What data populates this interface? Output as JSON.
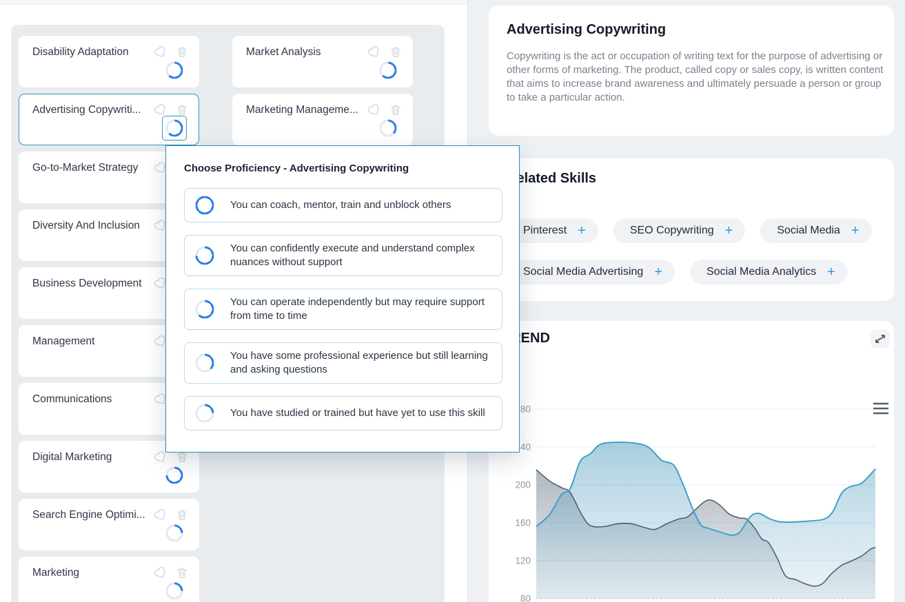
{
  "skills_panel": {
    "columns": [
      {
        "cards": [
          {
            "title": "Disability Adaptation",
            "level": 3,
            "selected": false
          },
          {
            "title": "Advertising Copywriti...",
            "level": 3,
            "selected": true
          },
          {
            "title": "Go-to-Market Strategy",
            "level": 3,
            "selected": false
          },
          {
            "title": "Diversity And Inclusion",
            "level": 3,
            "selected": false
          },
          {
            "title": "Business Development",
            "level": 3,
            "selected": false
          },
          {
            "title": "Management",
            "level": 3,
            "selected": false
          },
          {
            "title": "Communications",
            "level": 3,
            "selected": false
          },
          {
            "title": "Digital Marketing",
            "level": 4,
            "selected": false
          },
          {
            "title": "Search Engine Optimi...",
            "level": 1,
            "selected": false
          },
          {
            "title": "Marketing",
            "level": 1,
            "selected": false
          }
        ]
      },
      {
        "cards": [
          {
            "title": "Market Analysis",
            "level": 3,
            "selected": false
          },
          {
            "title": "Marketing Manageme...",
            "level": 2,
            "selected": false
          }
        ]
      }
    ]
  },
  "popup": {
    "title": "Choose Proficiency - Advertising Copywriting",
    "options": [
      {
        "level": 5,
        "label": "You can coach, mentor, train and unblock others"
      },
      {
        "level": 4,
        "label": "You can confidently execute and understand complex nuances without support"
      },
      {
        "level": 3,
        "label": "You can operate independently but may require support from time to time"
      },
      {
        "level": 2,
        "label": "You have some professional experience but still learning and asking questions"
      },
      {
        "level": 1,
        "label": "You have studied or trained but have yet to use this skill"
      }
    ]
  },
  "detail": {
    "title": "Advertising Copywriting",
    "description": "Copywriting is the act or occupation of writing text for the purpose of advertising or other forms of marketing. The product, called copy or sales copy, is written content that aims to increase brand awareness and ultimately persuade a person or group to take a particular action."
  },
  "related": {
    "heading": "Related Skills",
    "chips": [
      {
        "label": "Pinterest"
      },
      {
        "label": "SEO Copywriting"
      },
      {
        "label": "Social Media"
      },
      {
        "label": "Social Media Advertising"
      },
      {
        "label": "Social Media Analytics"
      }
    ]
  },
  "trend": {
    "heading": "TREND"
  },
  "chart_data": {
    "type": "area",
    "title": "TREND",
    "xlabel": "",
    "ylabel": "",
    "ylim": [
      80,
      300
    ],
    "yticks": [
      280,
      240,
      200,
      160,
      120,
      80
    ],
    "grid": true,
    "legend": false,
    "series": [
      {
        "name": "gray-area",
        "color": "#506070",
        "x": [
          0,
          0.04,
          0.075,
          0.1,
          0.135,
          0.16,
          0.2,
          0.24,
          0.28,
          0.32,
          0.35,
          0.385,
          0.42,
          0.445,
          0.47,
          0.495,
          0.515,
          0.54,
          0.57,
          0.6,
          0.62,
          0.645,
          0.665,
          0.685,
          0.71,
          0.735,
          0.765,
          0.79,
          0.82,
          0.845,
          0.87,
          0.9,
          0.925,
          0.96,
          0.985,
          1
        ],
        "values": [
          216,
          204,
          197,
          192,
          168,
          157,
          156,
          159,
          159,
          155,
          153,
          159,
          164,
          166,
          174,
          182,
          184,
          179,
          169,
          165,
          164,
          154,
          143,
          139,
          123,
          104,
          100,
          96,
          93,
          96,
          106,
          115,
          119,
          125,
          132,
          134
        ]
      },
      {
        "name": "teal-area",
        "color": "#3fa1c8",
        "x": [
          0,
          0.04,
          0.075,
          0.1,
          0.13,
          0.16,
          0.19,
          0.24,
          0.29,
          0.33,
          0.37,
          0.405,
          0.43,
          0.46,
          0.485,
          0.51,
          0.545,
          0.575,
          0.6,
          0.63,
          0.655,
          0.69,
          0.72,
          0.77,
          0.81,
          0.85,
          0.875,
          0.9,
          0.925,
          0.955,
          0.975,
          1
        ],
        "values": [
          156,
          169,
          190,
          196,
          225,
          233,
          243,
          245,
          244,
          240,
          226,
          221,
          203,
          176,
          158,
          154,
          150,
          147,
          150,
          166,
          170,
          164,
          161,
          161,
          162,
          164,
          172,
          191,
          198,
          201,
          207,
          217
        ]
      }
    ]
  },
  "colors": {
    "ring_blue": "#2b7de9",
    "ring_gray": "#e3e8ee",
    "accent_teal": "#2d9cdb",
    "selected_border": "#2e93c8",
    "panel_bg": "#eef1f4",
    "container_bg": "#e8ecef",
    "heading_text": "#141b2b",
    "body_text": "#79828f",
    "grid_line": "#e8ebee"
  }
}
